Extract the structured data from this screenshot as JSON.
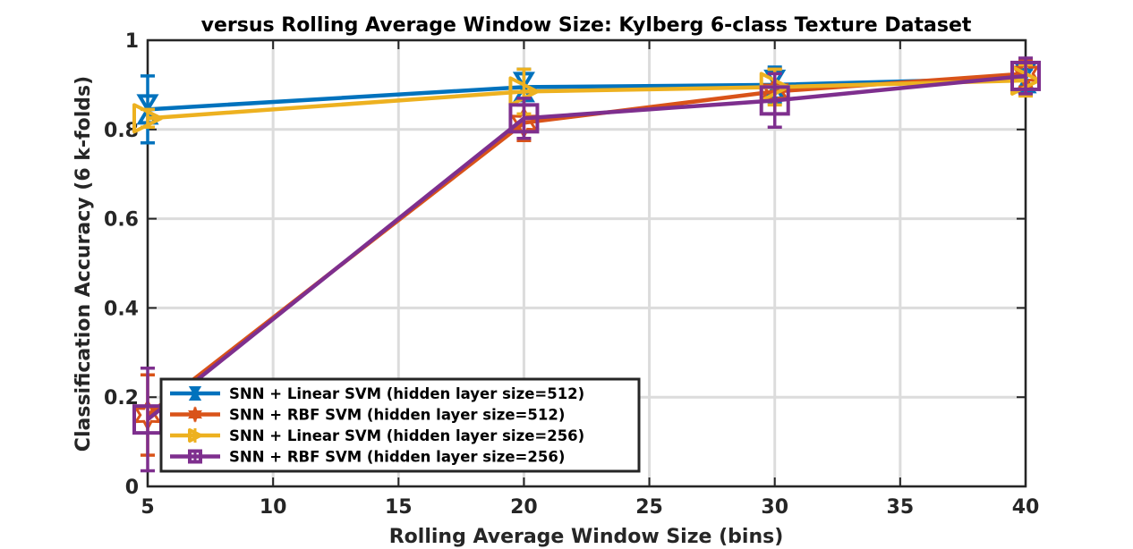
{
  "chart_data": {
    "type": "line",
    "title": "versus Rolling Average Window Size: Kylberg 6-class Texture Dataset",
    "xlabel": "Rolling Average Window Size (bins)",
    "ylabel": "Classification Accuracy (6 k-folds)",
    "xlim": [
      5,
      40
    ],
    "ylim": [
      0,
      1
    ],
    "xticks": [
      5,
      10,
      15,
      20,
      25,
      30,
      35,
      40
    ],
    "yticks": [
      0,
      0.2,
      0.4,
      0.6,
      0.8,
      1
    ],
    "xtick_labels": [
      "5",
      "10",
      "15",
      "20",
      "25",
      "30",
      "35",
      "40"
    ],
    "ytick_labels": [
      "0",
      "0.2",
      "0.4",
      "0.6",
      "0.8",
      "1"
    ],
    "grid": true,
    "legend_position": "bottom-left",
    "x": [
      5,
      20,
      30,
      40
    ],
    "series": [
      {
        "name": "SNN + Linear SVM (hidden layer size=512)",
        "color": "#0072BD",
        "marker": "hourglass",
        "values": [
          0.845,
          0.895,
          0.9,
          0.915
        ],
        "errors": [
          0.075,
          0.04,
          0.04,
          0.02
        ]
      },
      {
        "name": "SNN + RBF SVM (hidden layer size=512)",
        "color": "#D95319",
        "marker": "hexagram",
        "values": [
          0.16,
          0.815,
          0.885,
          0.925
        ],
        "errors": [
          0.09,
          0.04,
          0.05,
          0.03
        ]
      },
      {
        "name": "SNN + Linear SVM (hidden layer size=256)",
        "color": "#EDB120",
        "marker": "triangle-right",
        "values": [
          0.825,
          0.885,
          0.895,
          0.91
        ],
        "errors": [
          0.02,
          0.05,
          0.04,
          0.035
        ]
      },
      {
        "name": "SNN + RBF SVM (hidden layer size=256)",
        "color": "#7E2F8E",
        "marker": "square",
        "values": [
          0.15,
          0.825,
          0.865,
          0.92
        ],
        "errors": [
          0.115,
          0.045,
          0.06,
          0.04
        ]
      }
    ]
  }
}
